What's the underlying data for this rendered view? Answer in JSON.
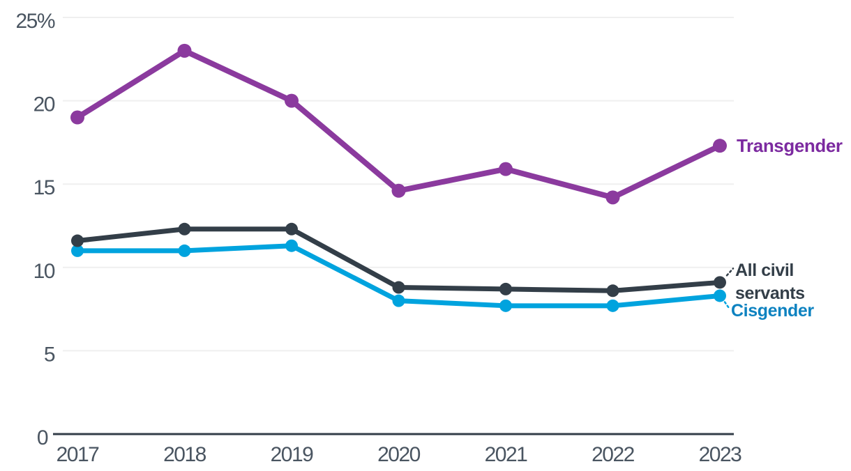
{
  "chart_data": {
    "type": "line",
    "title": "",
    "categories": [
      "2017",
      "2018",
      "2019",
      "2020",
      "2021",
      "2022",
      "2023"
    ],
    "unit": "%",
    "ylim": [
      0,
      25
    ],
    "yticks": [
      0,
      5,
      10,
      15,
      20,
      25
    ],
    "ytick_labels": [
      "0",
      "5",
      "10",
      "15",
      "20",
      "25%"
    ],
    "grid": "horizontal",
    "legend_position": "end-of-line-labels",
    "series": [
      {
        "name": "Transgender",
        "color": "#8b3a9e",
        "label_color": "#7c2aa0",
        "values": [
          19.0,
          23.0,
          20.0,
          14.6,
          15.9,
          14.2,
          17.3
        ]
      },
      {
        "name": "All civil servants",
        "color": "#333e48",
        "label_color": "#333e48",
        "values": [
          11.6,
          12.3,
          12.3,
          8.8,
          8.7,
          8.6,
          9.1
        ]
      },
      {
        "name": "Cisgender",
        "color": "#00a3de",
        "label_color": "#0d82c0",
        "values": [
          11.0,
          11.0,
          11.3,
          8.0,
          7.7,
          7.7,
          8.3
        ]
      }
    ],
    "end_labels": {
      "transgender": "Transgender",
      "all_civil_servants": "All civil\nservants",
      "cisgender": "Cisgender"
    },
    "colors": {
      "axis": "#333e48",
      "tick_label": "#4a5561",
      "gridline": "#efefef",
      "background": "#ffffff"
    }
  }
}
